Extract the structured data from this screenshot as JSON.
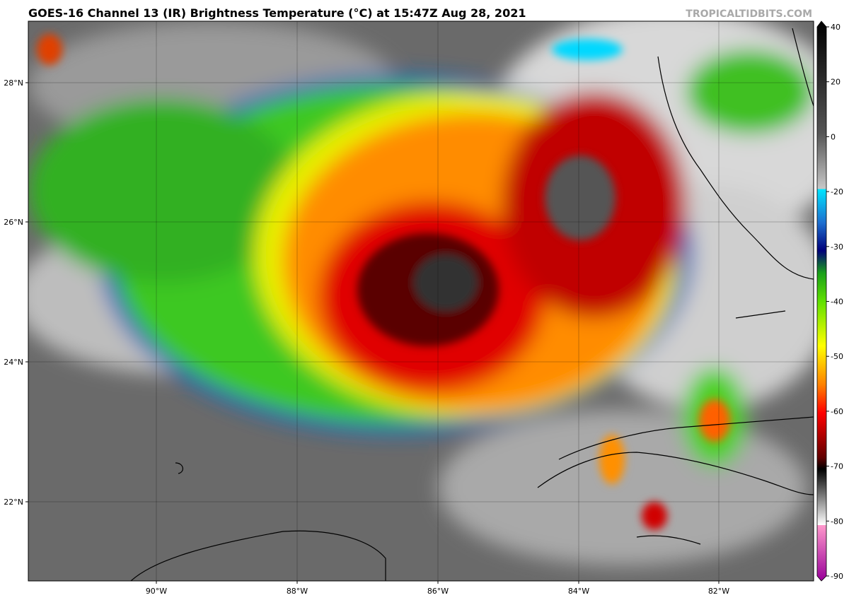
{
  "header": {
    "title": "GOES-16 Channel 13 (IR) Brightness Temperature (°C) at 15:47Z Aug 28, 2021",
    "source": "TROPICALTIDBITS.COM"
  },
  "map": {
    "latitude_labels": [
      "28°N",
      "26°N",
      "24°N",
      "22°N"
    ],
    "longitude_labels": [
      "90°W",
      "88°W",
      "86°W",
      "84°W",
      "82°W"
    ]
  },
  "colorbar": {
    "ticks": [
      40,
      20,
      0,
      -20,
      -30,
      -40,
      -50,
      -60,
      -70,
      -80,
      -90
    ]
  }
}
